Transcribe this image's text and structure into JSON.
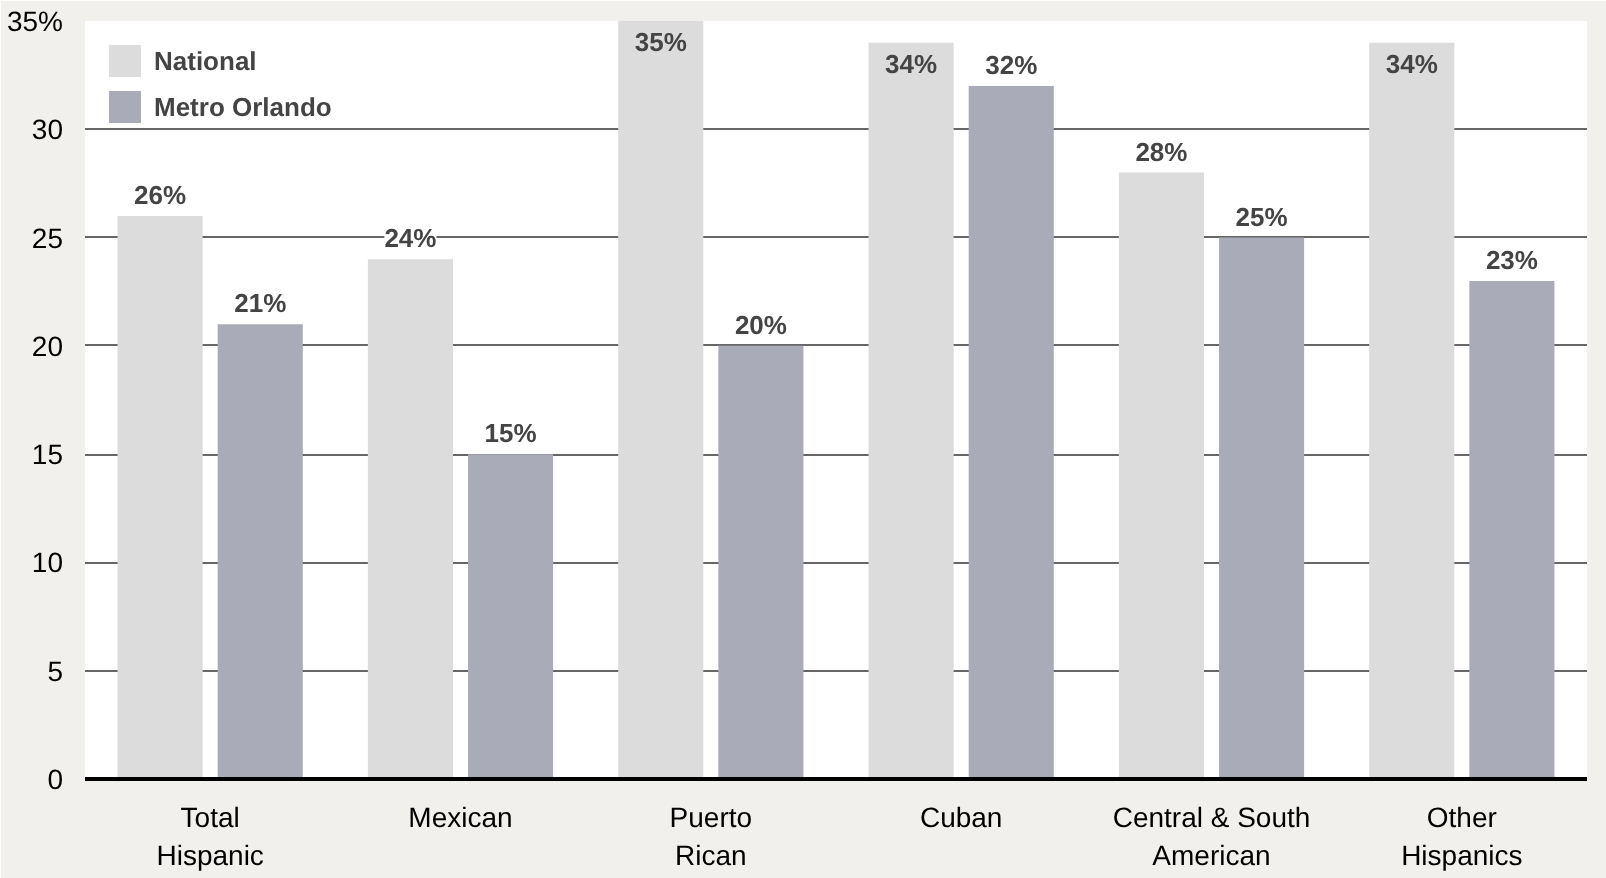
{
  "chart_data": {
    "type": "bar",
    "categories": [
      "Total\nHispanic",
      "Mexican",
      "Puerto\nRican",
      "Cuban",
      "Central & South\nAmerican",
      "Other\nHispanics"
    ],
    "series": [
      {
        "name": "National",
        "color": "#dcdcdc",
        "values": [
          26,
          24,
          35,
          34,
          28,
          34
        ],
        "value_labels": [
          "26%",
          "24%",
          "35%",
          "34%",
          "28%",
          "34%"
        ]
      },
      {
        "name": "Metro Orlando",
        "color": "#a9abb8",
        "values": [
          21,
          15,
          20,
          32,
          25,
          23
        ],
        "value_labels": [
          "21%",
          "15%",
          "20%",
          "32%",
          "25%",
          "23%"
        ]
      }
    ],
    "ylim": [
      0,
      35
    ],
    "yticks": [
      0,
      5,
      10,
      15,
      20,
      25,
      30,
      {
        "value": 35,
        "label": "35%"
      }
    ],
    "grid": "y",
    "legend": "top left"
  }
}
